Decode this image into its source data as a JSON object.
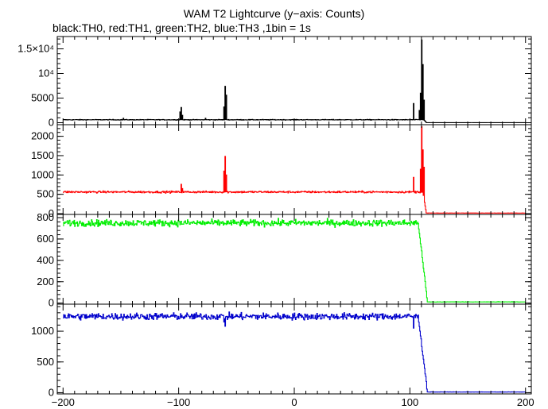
{
  "chart_data": {
    "type": "line",
    "title": "WAM T2 Lightcurve (y−axis: Counts)",
    "subtitle": "black:TH0, red:TH1, green:TH2, blue:TH3 ,1bin = 1s",
    "xlabel": "",
    "ylabel": "",
    "xlim": [
      -205,
      205
    ],
    "x_tick_labels": [
      "−200",
      "−100",
      "0",
      "100",
      "200"
    ],
    "x_tick_values": [
      -200,
      -100,
      0,
      100,
      200
    ],
    "grid": false,
    "panels": [
      {
        "name": "TH0",
        "color": "#000000",
        "ylim": [
          -400,
          17500
        ],
        "y_ticks": [
          {
            "value": 0,
            "label": "0"
          },
          {
            "value": 5000,
            "label": "5000"
          },
          {
            "value": 10000,
            "label": "10⁴"
          },
          {
            "value": 15000,
            "label": "1.5×10⁴"
          }
        ],
        "base": 600,
        "noise": 50,
        "drop_start": 112,
        "drop_end": 114,
        "after": 20,
        "features": [
          {
            "x": -148,
            "y": 900
          },
          {
            "x": -99,
            "y": 2200
          },
          {
            "x": -98,
            "y": 3100
          },
          {
            "x": -97,
            "y": 1500
          },
          {
            "x": -77,
            "y": 900
          },
          {
            "x": -61,
            "y": 3200
          },
          {
            "x": -60,
            "y": 7400
          },
          {
            "x": -59,
            "y": 5600
          },
          {
            "x": 103,
            "y": 3900
          },
          {
            "x": 108,
            "y": 2500
          },
          {
            "x": 109,
            "y": 6000
          },
          {
            "x": 110,
            "y": 16800
          },
          {
            "x": 111,
            "y": 11800
          },
          {
            "x": 112,
            "y": 4600
          }
        ]
      },
      {
        "name": "TH1",
        "color": "#ff0000",
        "ylim": [
          -20,
          2300
        ],
        "y_ticks": [
          {
            "value": 0,
            "label": "0"
          },
          {
            "value": 500,
            "label": "500"
          },
          {
            "value": 1000,
            "label": "1000"
          },
          {
            "value": 1500,
            "label": "1500"
          },
          {
            "value": 2000,
            "label": "2000"
          }
        ],
        "base": 560,
        "noise": 18,
        "drop_start": 111,
        "drop_end": 114,
        "after": 15,
        "features": [
          {
            "x": -98,
            "y": 760
          },
          {
            "x": -97,
            "y": 650
          },
          {
            "x": -61,
            "y": 1100
          },
          {
            "x": -60,
            "y": 1480
          },
          {
            "x": -59,
            "y": 1000
          },
          {
            "x": 103,
            "y": 940
          },
          {
            "x": 109,
            "y": 1150
          },
          {
            "x": 110,
            "y": 2250
          },
          {
            "x": 111,
            "y": 1650
          },
          {
            "x": 112,
            "y": 1200
          }
        ]
      },
      {
        "name": "TH2",
        "color": "#00ee00",
        "ylim": [
          -10,
          830
        ],
        "y_ticks": [
          {
            "value": 0,
            "label": "0"
          },
          {
            "value": 200,
            "label": "200"
          },
          {
            "value": 400,
            "label": "400"
          },
          {
            "value": 600,
            "label": "600"
          },
          {
            "value": 800,
            "label": "800"
          }
        ],
        "base": 750,
        "noise": 22,
        "drop_start": 107,
        "drop_end": 115,
        "after": 10,
        "features": []
      },
      {
        "name": "TH3",
        "color": "#0000cc",
        "ylim": [
          -20,
          1440
        ],
        "y_ticks": [
          {
            "value": 0,
            "label": "0"
          },
          {
            "value": 500,
            "label": "500"
          },
          {
            "value": 1000,
            "label": "1000"
          }
        ],
        "base": 1240,
        "noise": 40,
        "drop_start": 107,
        "drop_end": 115,
        "after": 10,
        "features": [
          {
            "x": -61,
            "y": 1150
          },
          {
            "x": -60,
            "y": 1080
          },
          {
            "x": 103,
            "y": 1050
          }
        ]
      }
    ]
  }
}
